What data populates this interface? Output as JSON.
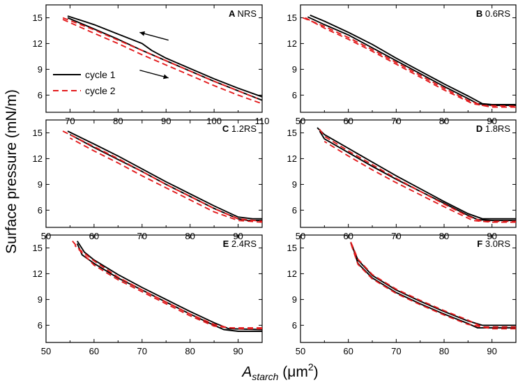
{
  "figure": {
    "ylabel": "Surface pressure (mN/m)",
    "xlabel_main": "A",
    "xlabel_sub": "starch",
    "xlabel_unit_open": " (μm",
    "xlabel_unit_sup": "2",
    "xlabel_unit_close": ")"
  },
  "colors": {
    "cycle1": "#000000",
    "cycle2": "#e31a1c"
  },
  "chart_data": [
    {
      "type": "line",
      "letter": "A",
      "title": "NRS",
      "xlim": [
        65,
        110
      ],
      "ylim": [
        4,
        16.5
      ],
      "xticks": [
        70,
        80,
        90,
        100,
        110
      ],
      "yticks": [
        6,
        9,
        12,
        15
      ],
      "legend": {
        "position": "bottom-left",
        "entries": [
          "cycle 1",
          "cycle 2"
        ]
      },
      "annotations": [
        "arrow pointing left (compression)",
        "arrow pointing right (expansion)"
      ],
      "series": [
        {
          "name": "cycle 1 (compression)",
          "x": [
            69.5,
            75,
            80,
            85,
            87,
            90,
            95,
            100,
            105,
            110
          ],
          "y": [
            15.2,
            14.2,
            13.1,
            12.0,
            11.2,
            10.3,
            9.1,
            7.9,
            6.8,
            5.8
          ]
        },
        {
          "name": "cycle 1 (expansion)",
          "x": [
            69.5,
            75,
            80,
            85,
            90,
            95,
            100,
            105,
            110
          ],
          "y": [
            15.0,
            13.7,
            12.5,
            11.2,
            10.0,
            8.8,
            7.6,
            6.5,
            5.4
          ]
        },
        {
          "name": "cycle 2 (compression)",
          "x": [
            68.5,
            75,
            80,
            85,
            90,
            95,
            100,
            105,
            109
          ],
          "y": [
            15.0,
            13.6,
            12.4,
            11.2,
            10.0,
            8.8,
            7.6,
            6.5,
            5.6
          ]
        },
        {
          "name": "cycle 2 (expansion)",
          "x": [
            68.5,
            75,
            80,
            85,
            90,
            95,
            100,
            105,
            110
          ],
          "y": [
            14.8,
            13.2,
            12.0,
            10.7,
            9.5,
            8.3,
            7.1,
            6.0,
            5.0
          ]
        }
      ]
    },
    {
      "type": "line",
      "letter": "B",
      "title": "0.6RS",
      "xlim": [
        50,
        95
      ],
      "ylim": [
        4,
        16.5
      ],
      "xticks": [
        50,
        60,
        70,
        80,
        90
      ],
      "yticks": [
        6,
        9,
        12,
        15
      ],
      "series": [
        {
          "name": "cycle 1 (compression)",
          "x": [
            52,
            55,
            60,
            65,
            70,
            75,
            80,
            85,
            88,
            90,
            95
          ],
          "y": [
            15.3,
            14.6,
            13.3,
            11.9,
            10.3,
            8.8,
            7.3,
            5.9,
            5.0,
            4.9,
            4.9
          ]
        },
        {
          "name": "cycle 1 (expansion)",
          "x": [
            95,
            90,
            87,
            85,
            80,
            75,
            70,
            65,
            60,
            55,
            51.5
          ],
          "y": [
            4.8,
            4.8,
            5.0,
            5.6,
            7.0,
            8.5,
            10.0,
            11.5,
            13.0,
            14.2,
            15.1
          ]
        },
        {
          "name": "cycle 2 (compression)",
          "x": [
            50.5,
            55,
            60,
            65,
            70,
            75,
            80,
            85,
            88,
            95
          ],
          "y": [
            15.0,
            14.0,
            12.7,
            11.3,
            9.8,
            8.3,
            6.8,
            5.4,
            4.8,
            4.7
          ]
        },
        {
          "name": "cycle 2 (expansion)",
          "x": [
            95,
            90,
            86,
            80,
            75,
            70,
            65,
            60,
            55,
            51
          ],
          "y": [
            4.6,
            4.6,
            5.0,
            6.6,
            8.1,
            9.6,
            11.1,
            12.5,
            13.8,
            15.0
          ]
        }
      ]
    },
    {
      "type": "line",
      "letter": "C",
      "title": "1.2RS",
      "xlim": [
        50,
        95
      ],
      "ylim": [
        4,
        16.5
      ],
      "xticks": [
        50,
        60,
        70,
        80,
        90
      ],
      "yticks": [
        6,
        9,
        12,
        15
      ],
      "series": [
        {
          "name": "cycle 1 (compression)",
          "x": [
            54.5,
            60,
            65,
            70,
            75,
            80,
            85,
            90,
            93,
            95
          ],
          "y": [
            15.2,
            13.7,
            12.3,
            10.8,
            9.3,
            7.9,
            6.5,
            5.2,
            5.0,
            5.0
          ]
        },
        {
          "name": "cycle 1 (expansion)",
          "x": [
            95,
            92,
            90,
            85,
            80,
            75,
            70,
            65,
            60,
            55
          ],
          "y": [
            4.8,
            4.8,
            5.0,
            6.2,
            7.6,
            9.0,
            10.5,
            11.9,
            13.3,
            14.8
          ]
        },
        {
          "name": "cycle 2 (compression)",
          "x": [
            53.5,
            60,
            65,
            70,
            75,
            80,
            85,
            90,
            95
          ],
          "y": [
            15.2,
            13.4,
            12.0,
            10.5,
            9.0,
            7.6,
            6.2,
            5.0,
            4.7
          ]
        },
        {
          "name": "cycle 2 (expansion)",
          "x": [
            95,
            90,
            85,
            80,
            75,
            70,
            65,
            60,
            55
          ],
          "y": [
            4.6,
            4.8,
            5.8,
            7.2,
            8.6,
            10.0,
            11.5,
            12.9,
            14.4
          ]
        }
      ]
    },
    {
      "type": "line",
      "letter": "D",
      "title": "1.8RS",
      "xlim": [
        50,
        95
      ],
      "ylim": [
        4,
        16.5
      ],
      "xticks": [
        50,
        60,
        70,
        80,
        90
      ],
      "yticks": [
        6,
        9,
        12,
        15
      ],
      "series": [
        {
          "name": "cycle 1 (compression)",
          "x": [
            53.5,
            55,
            60,
            65,
            70,
            75,
            80,
            85,
            88,
            95
          ],
          "y": [
            15.6,
            14.8,
            13.2,
            11.6,
            10.0,
            8.5,
            7.0,
            5.6,
            5.0,
            5.0
          ]
        },
        {
          "name": "cycle 1 (expansion)",
          "x": [
            95,
            90,
            87,
            85,
            80,
            75,
            70,
            65,
            60,
            55,
            54
          ],
          "y": [
            4.8,
            4.8,
            4.9,
            5.4,
            6.8,
            8.2,
            9.6,
            11.1,
            12.7,
            14.3,
            15.2
          ]
        },
        {
          "name": "cycle 2 (compression)",
          "x": [
            54,
            55,
            60,
            65,
            70,
            75,
            80,
            85,
            88,
            95
          ],
          "y": [
            15.4,
            14.6,
            12.9,
            11.3,
            9.7,
            8.2,
            6.7,
            5.3,
            4.7,
            4.7
          ]
        },
        {
          "name": "cycle 2 (expansion)",
          "x": [
            95,
            90,
            86,
            80,
            75,
            70,
            65,
            60,
            55
          ],
          "y": [
            4.6,
            4.6,
            4.8,
            6.4,
            7.8,
            9.2,
            10.7,
            12.3,
            14.0
          ]
        }
      ]
    },
    {
      "type": "line",
      "letter": "E",
      "title": "2.4RS",
      "xlim": [
        50,
        95
      ],
      "ylim": [
        4,
        16.5
      ],
      "xticks": [
        50,
        60,
        70,
        80,
        90
      ],
      "yticks": [
        6,
        9,
        12,
        15
      ],
      "series": [
        {
          "name": "cycle 1 (compression)",
          "x": [
            56.5,
            58,
            60,
            65,
            70,
            75,
            80,
            85,
            88,
            95
          ],
          "y": [
            15.8,
            14.5,
            13.6,
            11.9,
            10.4,
            9.0,
            7.6,
            6.3,
            5.6,
            5.5
          ]
        },
        {
          "name": "cycle 1 (expansion)",
          "x": [
            95,
            90,
            87,
            85,
            80,
            75,
            70,
            65,
            60,
            57.5,
            56.5
          ],
          "y": [
            5.3,
            5.3,
            5.5,
            6.0,
            7.3,
            8.7,
            10.1,
            11.5,
            13.2,
            14.2,
            15.5
          ]
        },
        {
          "name": "cycle 2 (compression)",
          "x": [
            55.5,
            57,
            60,
            65,
            70,
            75,
            80,
            85,
            88,
            95
          ],
          "y": [
            15.8,
            14.8,
            13.5,
            11.6,
            10.1,
            8.7,
            7.3,
            6.1,
            5.7,
            5.7
          ]
        },
        {
          "name": "cycle 2 (expansion)",
          "x": [
            95,
            90,
            85,
            80,
            75,
            70,
            65,
            60,
            56
          ],
          "y": [
            5.6,
            5.6,
            5.9,
            7.1,
            8.5,
            9.9,
            11.3,
            13.0,
            15.3
          ]
        }
      ]
    },
    {
      "type": "line",
      "letter": "F",
      "title": "3.0RS",
      "xlim": [
        50,
        95
      ],
      "ylim": [
        4,
        16.5
      ],
      "xticks": [
        50,
        60,
        70,
        80,
        90
      ],
      "yticks": [
        6,
        9,
        12,
        15
      ],
      "series": [
        {
          "name": "cycle 1 (compression)",
          "x": [
            60.5,
            62,
            65,
            70,
            75,
            80,
            85,
            88,
            95
          ],
          "y": [
            15.6,
            13.6,
            11.8,
            10.1,
            8.8,
            7.6,
            6.5,
            6.0,
            6.0
          ]
        },
        {
          "name": "cycle 1 (expansion)",
          "x": [
            95,
            90,
            87,
            85,
            80,
            75,
            70,
            65,
            62,
            60.8
          ],
          "y": [
            5.7,
            5.7,
            5.7,
            6.2,
            7.3,
            8.5,
            9.8,
            11.5,
            13.2,
            15.3
          ]
        },
        {
          "name": "cycle 2 (compression)",
          "x": [
            60.5,
            62,
            65,
            70,
            75,
            80,
            85,
            88,
            95
          ],
          "y": [
            15.7,
            13.7,
            11.9,
            10.2,
            8.9,
            7.7,
            6.6,
            5.8,
            5.8
          ]
        },
        {
          "name": "cycle 2 (expansion)",
          "x": [
            95,
            90,
            85,
            80,
            75,
            70,
            65,
            62,
            60.6
          ],
          "y": [
            5.6,
            5.6,
            6.1,
            7.2,
            8.4,
            9.7,
            11.4,
            13.1,
            15.4
          ]
        }
      ]
    }
  ]
}
